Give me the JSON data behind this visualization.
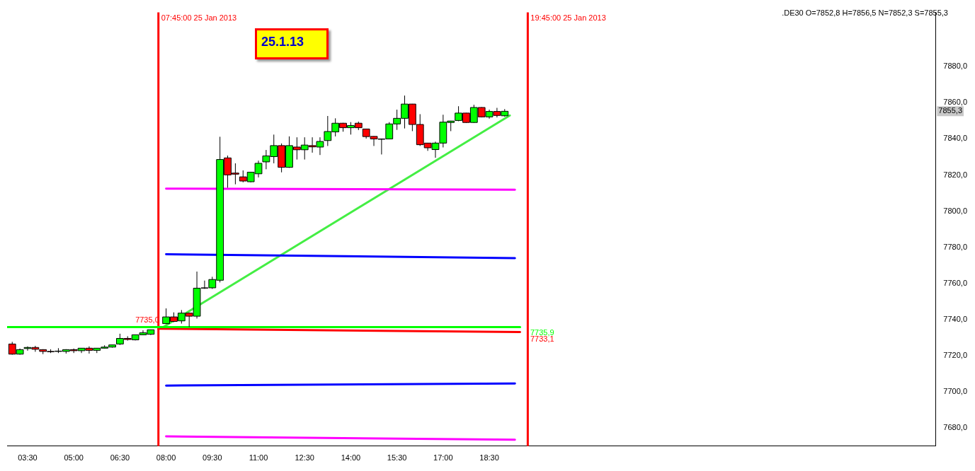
{
  "chart_data": {
    "type": "candlestick",
    "x": [
      "2013-01-25T03:00",
      "2013-01-25T03:15",
      "2013-01-25T03:30",
      "2013-01-25T03:45",
      "2013-01-25T04:00",
      "2013-01-25T04:15",
      "2013-01-25T04:30",
      "2013-01-25T04:45",
      "2013-01-25T05:00",
      "2013-01-25T05:15",
      "2013-01-25T05:30",
      "2013-01-25T05:45",
      "2013-01-25T06:00",
      "2013-01-25T06:15",
      "2013-01-25T06:30",
      "2013-01-25T06:45",
      "2013-01-25T07:00",
      "2013-01-25T07:15",
      "2013-01-25T07:30",
      "2013-01-25T08:00",
      "2013-01-25T08:15",
      "2013-01-25T08:30",
      "2013-01-25T08:45",
      "2013-01-25T09:00",
      "2013-01-25T09:15",
      "2013-01-25T09:30",
      "2013-01-25T09:45",
      "2013-01-25T10:00",
      "2013-01-25T10:15",
      "2013-01-25T10:30",
      "2013-01-25T10:45",
      "2013-01-25T11:00",
      "2013-01-25T11:15",
      "2013-01-25T11:30",
      "2013-01-25T11:45",
      "2013-01-25T12:00",
      "2013-01-25T12:15",
      "2013-01-25T12:30",
      "2013-01-25T12:45",
      "2013-01-25T13:00",
      "2013-01-25T13:15",
      "2013-01-25T13:30",
      "2013-01-25T13:45",
      "2013-01-25T14:00",
      "2013-01-25T14:15",
      "2013-01-25T14:30",
      "2013-01-25T14:45",
      "2013-01-25T15:00",
      "2013-01-25T15:15",
      "2013-01-25T15:30",
      "2013-01-25T15:45",
      "2013-01-25T16:00",
      "2013-01-25T16:15",
      "2013-01-25T16:30",
      "2013-01-25T16:45",
      "2013-01-25T17:00",
      "2013-01-25T17:15",
      "2013-01-25T17:30",
      "2013-01-25T17:45",
      "2013-01-25T18:00",
      "2013-01-25T18:15",
      "2013-01-25T18:30",
      "2013-01-25T18:45",
      "2013-01-25T19:00"
    ],
    "ohlc": [
      [
        7726.5,
        7727.7,
        7720.6,
        7720.9
      ],
      [
        7720.9,
        7724.0,
        7720.6,
        7723.4
      ],
      [
        7724.0,
        7725.2,
        7722.8,
        7724.6
      ],
      [
        7724.6,
        7725.5,
        7722.2,
        7723.6
      ],
      [
        7723.4,
        7723.6,
        7720.9,
        7722.4
      ],
      [
        7722.4,
        7723.6,
        7721.5,
        7722.4
      ],
      [
        7722.5,
        7724.2,
        7721.5,
        7722.6
      ],
      [
        7722.4,
        7723.6,
        7721.2,
        7723.4
      ],
      [
        7723.4,
        7724.0,
        7721.5,
        7722.8
      ],
      [
        7722.8,
        7724.2,
        7721.5,
        7724.2
      ],
      [
        7724.2,
        7725.2,
        7721.2,
        7723.0
      ],
      [
        7723.0,
        7724.2,
        7721.5,
        7724.2
      ],
      [
        7724.2,
        7725.8,
        7724.0,
        7724.8
      ],
      [
        7724.8,
        7726.0,
        7724.5,
        7726.0
      ],
      [
        7726.5,
        7732.2,
        7726.0,
        7729.6
      ],
      [
        7729.6,
        7730.8,
        7728.4,
        7729.0
      ],
      [
        7728.8,
        7731.6,
        7728.5,
        7731.6
      ],
      [
        7731.6,
        7734.1,
        7731.4,
        7732.7
      ],
      [
        7731.9,
        7734.4,
        7731.5,
        7734.4
      ],
      [
        7737.8,
        7746.2,
        7737.6,
        7741.5
      ],
      [
        7741.5,
        7744.0,
        7738.6,
        7739.0
      ],
      [
        7739.3,
        7745.3,
        7737.8,
        7743.6
      ],
      [
        7743.6,
        7743.8,
        7735.9,
        7741.9
      ],
      [
        7741.9,
        7766.6,
        7740.6,
        7757.4
      ],
      [
        7757.6,
        7761.6,
        7757.0,
        7757.6
      ],
      [
        7757.6,
        7763.7,
        7757.0,
        7762.2
      ],
      [
        7761.8,
        7841.2,
        7760.6,
        7828.6
      ],
      [
        7829.5,
        7830.8,
        7813.0,
        7820.1
      ],
      [
        7821.1,
        7826.5,
        7814.9,
        7820.5
      ],
      [
        7819.0,
        7822.6,
        7816.0,
        7816.7
      ],
      [
        7816.3,
        7821.8,
        7816.0,
        7821.6
      ],
      [
        7820.7,
        7828.0,
        7818.7,
        7826.5
      ],
      [
        7827.3,
        7833.9,
        7823.2,
        7830.6
      ],
      [
        7830.2,
        7842.4,
        7826.5,
        7836.3
      ],
      [
        7836.3,
        7837.5,
        7821.5,
        7824.3
      ],
      [
        7824.3,
        7841.4,
        7824.0,
        7836.3
      ],
      [
        7835.5,
        7840.9,
        7828.6,
        7834.0
      ],
      [
        7834.0,
        7840.9,
        7828.6,
        7836.6
      ],
      [
        7836.3,
        7840.9,
        7832.4,
        7835.6
      ],
      [
        7835.5,
        7840.9,
        7831.1,
        7838.6
      ],
      [
        7839.1,
        7852.7,
        7836.1,
        7844.1
      ],
      [
        7843.9,
        7851.4,
        7841.4,
        7848.7
      ],
      [
        7848.7,
        7848.9,
        7844.0,
        7846.2
      ],
      [
        7846.2,
        7849.3,
        7842.4,
        7847.4
      ],
      [
        7848.7,
        7849.6,
        7844.9,
        7846.2
      ],
      [
        7845.5,
        7845.6,
        7840.2,
        7841.3
      ],
      [
        7841.4,
        7841.5,
        7836.1,
        7840.0
      ],
      [
        7840.0,
        7840.2,
        7831.4,
        7840.0
      ],
      [
        7840.0,
        7849.3,
        7839.8,
        7848.3
      ],
      [
        7848.3,
        7856.2,
        7845.0,
        7851.4
      ],
      [
        7851.4,
        7864.0,
        7845.8,
        7859.3
      ],
      [
        7859.3,
        7859.4,
        7844.3,
        7848.0
      ],
      [
        7848.0,
        7853.7,
        7836.1,
        7836.8
      ],
      [
        7837.7,
        7837.8,
        7833.4,
        7835.1
      ],
      [
        7834.1,
        7838.5,
        7829.6,
        7837.7
      ],
      [
        7837.7,
        7853.4,
        7835.3,
        7849.3
      ],
      [
        7849.1,
        7850.0,
        7844.3,
        7849.9
      ],
      [
        7850.2,
        7858.1,
        7849.8,
        7854.3
      ],
      [
        7854.3,
        7854.4,
        7848.9,
        7849.1
      ],
      [
        7849.1,
        7858.9,
        7848.9,
        7857.4
      ],
      [
        7857.4,
        7857.6,
        7851.9,
        7852.2
      ],
      [
        7852.2,
        7856.2,
        7851.2,
        7855.2
      ],
      [
        7855.2,
        7857.2,
        7851.9,
        7853.0
      ],
      [
        7852.8,
        7856.5,
        7852.3,
        7855.3
      ]
    ],
    "colors": [
      "#ff0000",
      "#00ff00",
      "#00ff00",
      "#ff0000",
      "#ff0000",
      "#ff0000",
      "#00ff00",
      "#00ff00",
      "#ff0000",
      "#00ff00",
      "#ff0000",
      "#00ff00",
      "#00ff00",
      "#00ff00",
      "#00ff00",
      "#ff0000",
      "#00ff00",
      "#00ff00",
      "#00ff00",
      "#00ff00",
      "#ff0000",
      "#00ff00",
      "#ff0000",
      "#00ff00",
      "#ff0000",
      "#00ff00",
      "#00ff00",
      "#ff0000",
      "#ff0000",
      "#ff0000",
      "#00ff00",
      "#00ff00",
      "#00ff00",
      "#00ff00",
      "#ff0000",
      "#00ff00",
      "#ff0000",
      "#00ff00",
      "#ff0000",
      "#00ff00",
      "#00ff00",
      "#00ff00",
      "#ff0000",
      "#00ff00",
      "#ff0000",
      "#ff0000",
      "#ff0000",
      "#ff0000",
      "#00ff00",
      "#00ff00",
      "#00ff00",
      "#ff0000",
      "#ff0000",
      "#ff0000",
      "#00ff00",
      "#00ff00",
      "#00ff00",
      "#00ff00",
      "#ff0000",
      "#00ff00",
      "#ff0000",
      "#00ff00",
      "#ff0000",
      "#00ff00"
    ],
    "series": [
      {
        "type": "line",
        "color": "#ff00ff",
        "x": [
          "2013-01-25T08:00",
          "2013-01-25T19:20"
        ],
        "values": [
          7812.5,
          7811.9
        ]
      },
      {
        "type": "line",
        "color": "#0000ff",
        "x": [
          "2013-01-25T08:00",
          "2013-01-25T19:20"
        ],
        "values": [
          7776.2,
          7774.0
        ]
      },
      {
        "type": "line",
        "color": "#00ff00",
        "x": [
          "2013-01-25T02:50",
          "2013-01-25T19:30"
        ],
        "values": [
          7735.9,
          7735.9
        ]
      },
      {
        "type": "line",
        "color": "#ff0000",
        "x": [
          "2013-01-25T07:45",
          "2013-01-25T19:30"
        ],
        "values": [
          7735.0,
          7733.1
        ]
      },
      {
        "type": "line",
        "color": "#0000ff",
        "x": [
          "2013-01-25T08:00",
          "2013-01-25T19:20"
        ],
        "values": [
          7703.5,
          7704.7
        ]
      },
      {
        "type": "line",
        "color": "#ff00ff",
        "x": [
          "2013-01-25T08:00",
          "2013-01-25T19:20"
        ],
        "values": [
          7675.4,
          7673.5
        ]
      },
      {
        "type": "line",
        "color": "#44ee44",
        "x": [
          "2013-01-25T07:55",
          "2013-01-25T19:10"
        ],
        "values": [
          7736,
          7853
        ]
      }
    ],
    "xlim": [
      "2013-01-25T02:50",
      "2013-01-26T09:00"
    ],
    "xticks": [
      {
        "value": "2013-01-25T03:30",
        "label": "03:30"
      },
      {
        "value": "2013-01-25T05:00",
        "label": "05:00"
      },
      {
        "value": "2013-01-25T06:30",
        "label": "06:30"
      },
      {
        "value": "2013-01-25T08:00",
        "label": "08:00"
      },
      {
        "value": "2013-01-25T09:30",
        "label": "09:30"
      },
      {
        "value": "2013-01-25T11:00",
        "label": "11:00"
      },
      {
        "value": "2013-01-25T12:30",
        "label": "12:30"
      },
      {
        "value": "2013-01-25T14:00",
        "label": "14:00"
      },
      {
        "value": "2013-01-25T15:30",
        "label": "15:30"
      },
      {
        "value": "2013-01-25T17:00",
        "label": "17:00"
      },
      {
        "value": "2013-01-25T18:30",
        "label": "18:30"
      }
    ],
    "ylim": [
      7670,
      7910
    ],
    "yticks": [
      {
        "value": 7680,
        "label": "7680,0"
      },
      {
        "value": 7700,
        "label": "7700,0"
      },
      {
        "value": 7720,
        "label": "7720,0"
      },
      {
        "value": 7740,
        "label": "7740,0"
      },
      {
        "value": 7760,
        "label": "7760,0"
      },
      {
        "value": 7780,
        "label": "7780,0"
      },
      {
        "value": 7800,
        "label": "7800,0"
      },
      {
        "value": 7820,
        "label": "7820,0"
      },
      {
        "value": 7840,
        "label": "7840,0"
      },
      {
        "value": 7860,
        "label": "7860,0"
      },
      {
        "value": 7880,
        "label": "7880,0"
      }
    ],
    "ref_lines": [
      {
        "axis": "x",
        "value": "2013-01-25T07:45",
        "label": "07:45:00 25 Jan 2013",
        "color": "#ff0000"
      },
      {
        "axis": "x",
        "value": "2013-01-25T19:45",
        "label": "19:45:00 25 Jan 2013",
        "color": "#ff0000"
      }
    ],
    "annotations": [
      "25.1.13",
      ".DE30 O=7852,8 H=7856,5 N=7852,3 S=7855,3",
      {
        "text": "7735,0",
        "x": "2013-01-25T07:00",
        "y": 7735.0
      },
      {
        "text": "7735,9",
        "x": "2013-01-25T19:50",
        "y": 7735.9
      },
      {
        "text": "7733,1",
        "x": "2013-01-25T19:50",
        "y": 7733.1
      },
      {
        "text": "7855,3",
        "y": 7855.3
      }
    ],
    "grid": false,
    "legend": false
  }
}
